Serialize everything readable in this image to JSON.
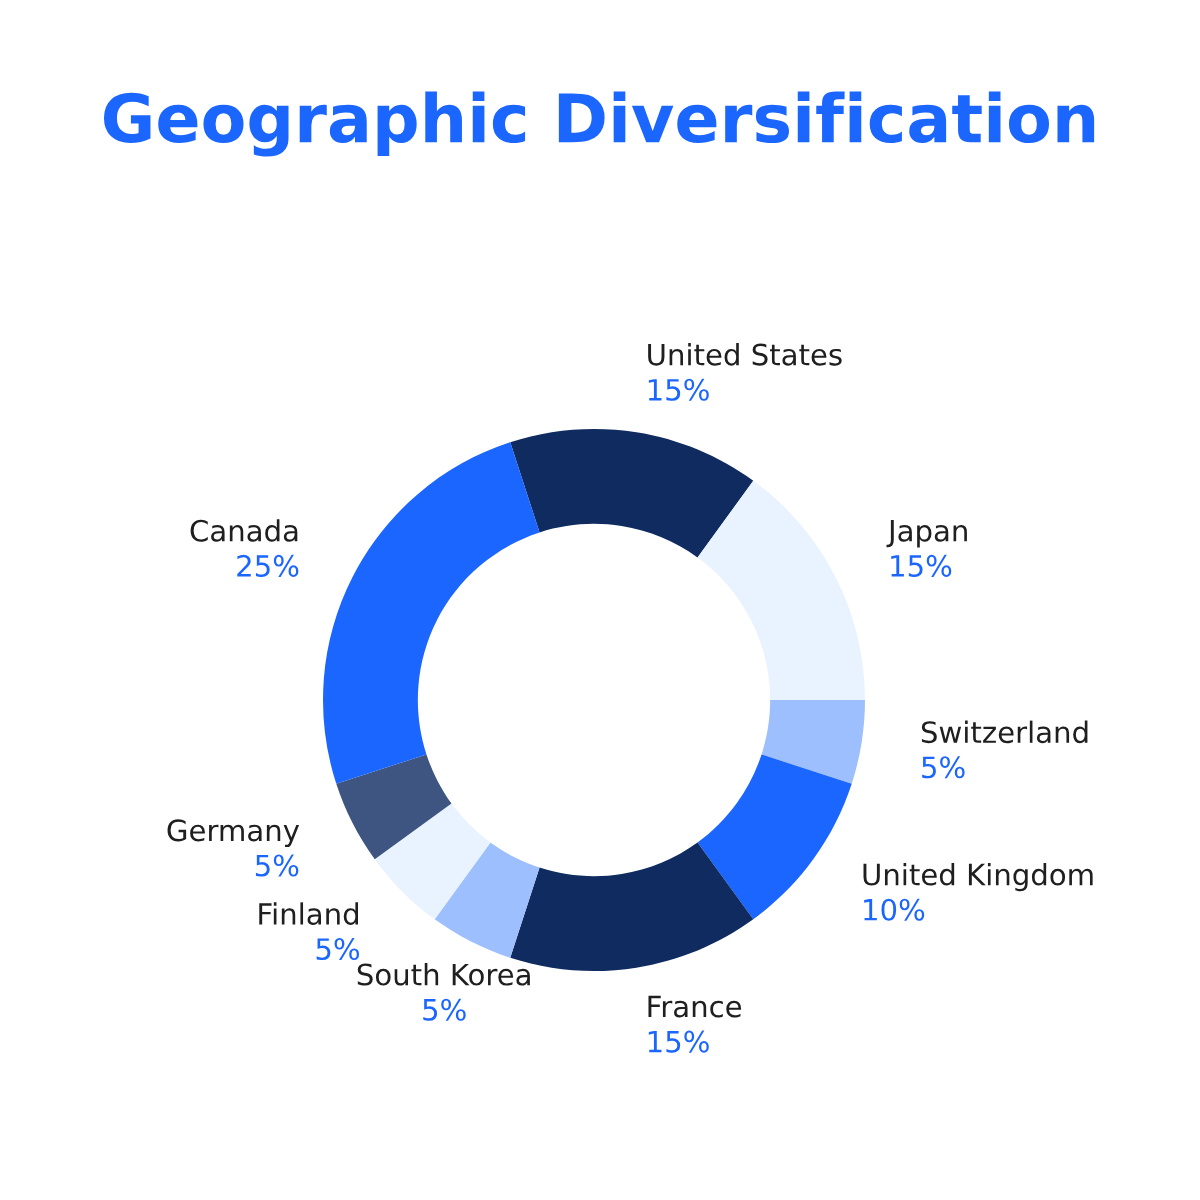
{
  "chart_data": {
    "type": "donut",
    "title": "Geographic Diversification",
    "categories": [
      "United States",
      "Japan",
      "Switzerland",
      "United Kingdom",
      "France",
      "South Korea",
      "Finland",
      "Germany",
      "Canada"
    ],
    "values": [
      15,
      15,
      5,
      10,
      15,
      5,
      5,
      5,
      25
    ],
    "value_labels": [
      "15%",
      "15%",
      "5%",
      "10%",
      "15%",
      "5%",
      "5%",
      "5%",
      "25%"
    ],
    "colors": [
      "#0f2b5f",
      "#e8f3ff",
      "#9ebffd",
      "#1b66ff",
      "#0f2b5f",
      "#9ebffd",
      "#e8f3ff",
      "#3d5580",
      "#1b66ff"
    ]
  }
}
